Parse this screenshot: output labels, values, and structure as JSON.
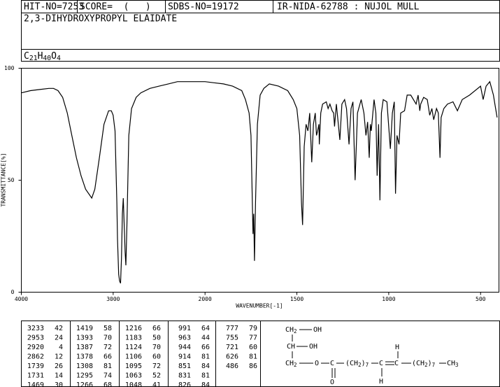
{
  "header": {
    "hit_no": "HIT-NO=7253",
    "score": "SCORE=  (   )",
    "sdbs_no": "SDBS-NO=19172",
    "method": "IR-NIDA-62788 : NUJOL MULL"
  },
  "compound_name": "2,3-DIHYDROXYPROPYL ELAIDATE",
  "formula": "C21H40O4",
  "chart_data": {
    "type": "line",
    "xlabel": "WAVENUMBER[-1]",
    "ylabel": "TRANSMITTANCE[%]",
    "color": "#000000",
    "xlim": [
      4000,
      400
    ],
    "ylim": [
      0,
      100
    ],
    "xticks": [
      4000,
      3000,
      2000,
      1500,
      1000,
      500
    ],
    "yticks": [
      0,
      50,
      100
    ],
    "x": [
      4000,
      3900,
      3800,
      3700,
      3650,
      3600,
      3550,
      3500,
      3450,
      3400,
      3350,
      3300,
      3250,
      3233,
      3200,
      3150,
      3100,
      3050,
      3020,
      3000,
      2980,
      2960,
      2953,
      2940,
      2930,
      2920,
      2910,
      2900,
      2890,
      2880,
      2870,
      2862,
      2850,
      2830,
      2800,
      2750,
      2700,
      2600,
      2500,
      2400,
      2300,
      2200,
      2100,
      2000,
      1950,
      1900,
      1850,
      1800,
      1780,
      1760,
      1750,
      1740,
      1739,
      1735,
      1731,
      1725,
      1715,
      1700,
      1680,
      1650,
      1600,
      1550,
      1520,
      1500,
      1485,
      1475,
      1469,
      1465,
      1460,
      1450,
      1440,
      1430,
      1419,
      1410,
      1400,
      1393,
      1387,
      1380,
      1378,
      1370,
      1360,
      1340,
      1330,
      1320,
      1308,
      1300,
      1295,
      1285,
      1266,
      1255,
      1240,
      1230,
      1216,
      1205,
      1195,
      1183,
      1170,
      1150,
      1135,
      1124,
      1115,
      1106,
      1100,
      1095,
      1080,
      1070,
      1063,
      1055,
      1048,
      1040,
      1030,
      1010,
      991,
      980,
      970,
      963,
      955,
      944,
      935,
      914,
      900,
      880,
      851,
      840,
      831,
      826,
      810,
      790,
      777,
      765,
      755,
      740,
      730,
      721,
      715,
      700,
      680,
      650,
      626,
      600,
      560,
      500,
      486,
      470,
      450,
      430,
      420,
      410
    ],
    "values": [
      89,
      90,
      90.5,
      91,
      91,
      90,
      87,
      80,
      70,
      60,
      52,
      46,
      43,
      42,
      46,
      60,
      75,
      81,
      81,
      79,
      72,
      40,
      24,
      8,
      5,
      4,
      15,
      35,
      42,
      30,
      18,
      12,
      30,
      70,
      82,
      87,
      89,
      91,
      92,
      93,
      94,
      94,
      94,
      94,
      93.5,
      93,
      92,
      90,
      86,
      80,
      70,
      30,
      26,
      35,
      14,
      40,
      75,
      88,
      91,
      93,
      92,
      90,
      86,
      82,
      70,
      40,
      30,
      45,
      65,
      75,
      72,
      80,
      58,
      75,
      80,
      70,
      72,
      75,
      66,
      80,
      84,
      85,
      82,
      84,
      81,
      80,
      74,
      84,
      68,
      84,
      86,
      82,
      66,
      82,
      85,
      50,
      80,
      86,
      80,
      70,
      76,
      60,
      75,
      72,
      86,
      80,
      52,
      75,
      41,
      80,
      86,
      85,
      64,
      80,
      85,
      44,
      70,
      66,
      80,
      81,
      88,
      88,
      84,
      88,
      81,
      84,
      87,
      86,
      79,
      82,
      77,
      82,
      80,
      60,
      78,
      82,
      84,
      85,
      81,
      86,
      88,
      92,
      86,
      92,
      94,
      88,
      83,
      78
    ]
  },
  "peaks": [
    [
      [
        "3233",
        "42"
      ],
      [
        "2953",
        "24"
      ],
      [
        "2920",
        "4"
      ],
      [
        "2862",
        "12"
      ],
      [
        "1739",
        "26"
      ],
      [
        "1731",
        "14"
      ],
      [
        "1469",
        "30"
      ]
    ],
    [
      [
        "1419",
        "58"
      ],
      [
        "1393",
        "70"
      ],
      [
        "1387",
        "72"
      ],
      [
        "1378",
        "66"
      ],
      [
        "1308",
        "81"
      ],
      [
        "1295",
        "74"
      ],
      [
        "1266",
        "68"
      ]
    ],
    [
      [
        "1216",
        "66"
      ],
      [
        "1183",
        "50"
      ],
      [
        "1124",
        "70"
      ],
      [
        "1106",
        "60"
      ],
      [
        "1095",
        "72"
      ],
      [
        "1063",
        "52"
      ],
      [
        "1048",
        "41"
      ]
    ],
    [
      [
        "991",
        "64"
      ],
      [
        "963",
        "44"
      ],
      [
        "944",
        "66"
      ],
      [
        "914",
        "81"
      ],
      [
        "851",
        "84"
      ],
      [
        "831",
        "81"
      ],
      [
        "826",
        "84"
      ]
    ],
    [
      [
        "777",
        "79"
      ],
      [
        "755",
        "77"
      ],
      [
        "721",
        "60"
      ],
      [
        "626",
        "81"
      ],
      [
        "486",
        "86"
      ]
    ]
  ],
  "structure": [
    "CH2",
    "OH",
    "CH",
    "OH",
    "CH2",
    "O",
    "C",
    "(CH2)7",
    "C",
    "C",
    "(CH2)7",
    "CH3",
    "O",
    "H",
    "H"
  ]
}
